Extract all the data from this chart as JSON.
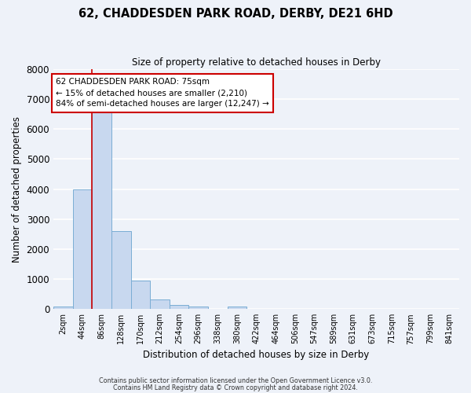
{
  "title": "62, CHADDESDEN PARK ROAD, DERBY, DE21 6HD",
  "subtitle": "Size of property relative to detached houses in Derby",
  "xlabel": "Distribution of detached houses by size in Derby",
  "ylabel": "Number of detached properties",
  "bar_color": "#c8d8ef",
  "bar_edge_color": "#7aadd4",
  "background_color": "#eef2f9",
  "grid_color": "#ffffff",
  "bin_labels": [
    "2sqm",
    "44sqm",
    "86sqm",
    "128sqm",
    "170sqm",
    "212sqm",
    "254sqm",
    "296sqm",
    "338sqm",
    "380sqm",
    "422sqm",
    "464sqm",
    "506sqm",
    "547sqm",
    "589sqm",
    "631sqm",
    "673sqm",
    "715sqm",
    "757sqm",
    "799sqm",
    "841sqm"
  ],
  "bin_values": [
    75,
    4000,
    6600,
    2600,
    950,
    320,
    130,
    75,
    0,
    80,
    0,
    0,
    0,
    0,
    0,
    0,
    0,
    0,
    0,
    0,
    0
  ],
  "ylim": [
    0,
    8000
  ],
  "yticks": [
    0,
    1000,
    2000,
    3000,
    4000,
    5000,
    6000,
    7000,
    8000
  ],
  "annotation_title": "62 CHADDESDEN PARK ROAD: 75sqm",
  "annotation_line1": "← 15% of detached houses are smaller (2,210)",
  "annotation_line2": "84% of semi-detached houses are larger (12,247) →",
  "annotation_box_color": "#ffffff",
  "annotation_box_edge": "#cc0000",
  "footer1": "Contains HM Land Registry data © Crown copyright and database right 2024.",
  "footer2": "Contains public sector information licensed under the Open Government Licence v3.0."
}
